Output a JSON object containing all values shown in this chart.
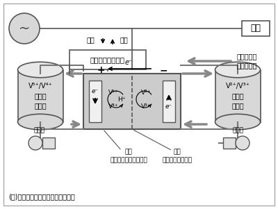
{
  "bg_color": "#f0f0f0",
  "border_color": "#888888",
  "title_note": "(注)イオンの変化は放電状態を示す",
  "charge_text": "充電",
  "discharge_text": "放電",
  "inverter_text": "双方向インバータ",
  "load_text": "負荷",
  "vanadium_text": "バナジウム\n硫酸水溶液",
  "left_tank_text": "V⁵⁺/V⁴⁺\n電解液\nタンク",
  "right_tank_text": "V²⁺/V³⁺\n電解液\nタンク",
  "pump_text_left": "ポンプ",
  "pump_text_right": "ポンプ",
  "electrode_text": "電極\n（カーボンフェルト）",
  "membrane_text": "隔膜\n（イオン交換膜）",
  "plus_text": "+",
  "minus_text": "−",
  "electron_top": "e⁻",
  "left_e": "e⁻",
  "right_e": "e⁻",
  "v5_text": "V⁵⁺",
  "v4_text": "V⁴⁺",
  "v2_text": "V²⁺",
  "v3_text": "V³⁺",
  "h_text": "H⁺"
}
